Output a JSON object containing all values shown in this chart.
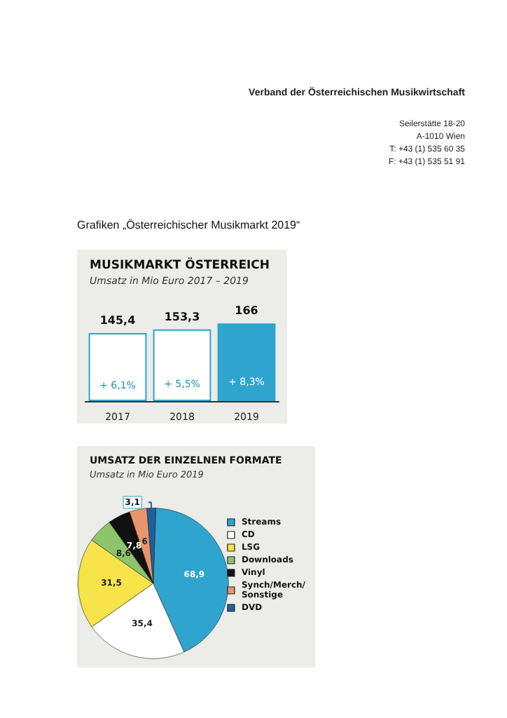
{
  "chart_data": [
    {
      "type": "other",
      "annotations": [
        "Verband der Österreichischen Musikwirtschaft",
        "Seilerstätte 18-20",
        "A-1010 Wien",
        "T: +43 (1) 535 60 35",
        "F: +43 (1) 535 51 91",
        "Grafiken „Österreichischer Musikmarkt 2019“"
      ]
    },
    {
      "type": "bar",
      "title": "MUSIKMARKT ÖSTERREICH",
      "subtitle": "Umsatz in Mio Euro 2017 – 2019",
      "categories": [
        "2017",
        "2018",
        "2019"
      ],
      "values": [
        145.4,
        153.3,
        166
      ],
      "value_labels": [
        "145,4",
        "153,3",
        "166"
      ],
      "colors": [
        "#ffffff",
        "#ffffff",
        "#2fa4cf"
      ],
      "annotations": [
        "+ 6,1%",
        "+ 5,5%",
        "+ 8,3%"
      ]
    },
    {
      "type": "pie",
      "title": "UMSATZ DER EINZELNEN FORMATE",
      "subtitle": "Umsatz in Mio Euro 2019",
      "categories": [
        "Streams",
        "CD",
        "LSG",
        "Downloads",
        "Vinyl",
        "Synch/Merch/\nSonstige",
        "DVD"
      ],
      "values": [
        68.9,
        35.4,
        31.5,
        8.6,
        7.8,
        6,
        3.1
      ],
      "value_labels": [
        "68,9",
        "35,4",
        "31,5",
        "8,6",
        "7,8",
        "6",
        "3,1"
      ],
      "colors": [
        "#2fa4cf",
        "#ffffff",
        "#f7e34a",
        "#8cc56a",
        "#111111",
        "#e8956d",
        "#1f5f9a"
      ],
      "legend": "right"
    }
  ]
}
